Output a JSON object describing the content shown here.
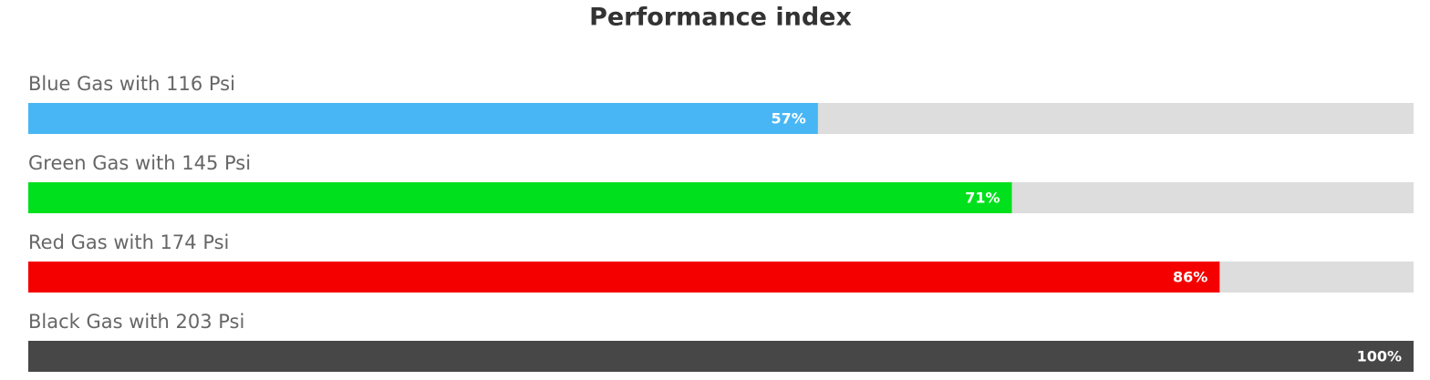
{
  "chart_data": {
    "type": "bar",
    "orientation": "horizontal",
    "title": "Performance index",
    "categories": [
      "Blue Gas with 116 Psi",
      "Green Gas with 145 Psi",
      "Red Gas with 174 Psi",
      "Black Gas with 203 Psi"
    ],
    "values": [
      57,
      71,
      86,
      100
    ],
    "value_labels": [
      "57%",
      "71%",
      "86%",
      "100%"
    ],
    "colors": [
      "#48b6f4",
      "#00e01c",
      "#f50000",
      "#474747"
    ],
    "track_color": "#dddddd",
    "xlim": [
      0,
      100
    ]
  }
}
